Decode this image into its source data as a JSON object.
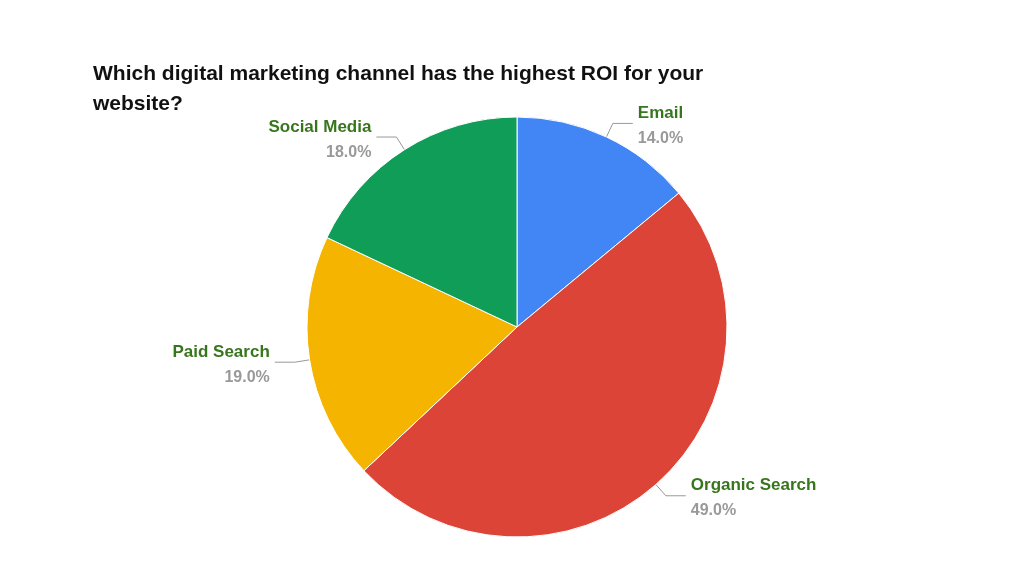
{
  "chart_data": {
    "type": "pie",
    "title": "Which digital marketing channel has the highest ROI for your website?",
    "categories": [
      "Email",
      "Organic Search",
      "Paid Search",
      "Social Media"
    ],
    "values": [
      14,
      49,
      19,
      18
    ],
    "colors": [
      "#4285f4",
      "#db4437",
      "#f4b400",
      "#0f9d58"
    ],
    "value_labels": [
      "14.0%",
      "49.0%",
      "19.0%",
      "18.0%"
    ]
  }
}
